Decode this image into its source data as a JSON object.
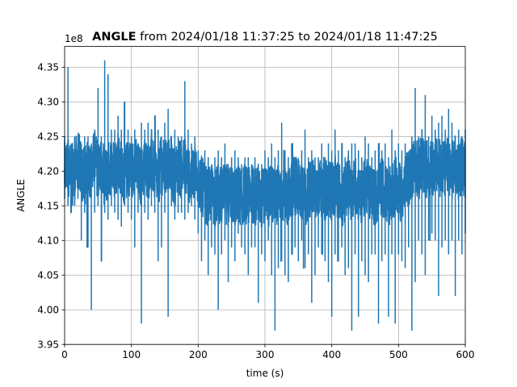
{
  "chart_data": {
    "type": "line",
    "title_bold": "ANGLE",
    "title_rest": " from 2024/01/18 11:37:25 to 2024/01/18 11:47:25",
    "xlabel": "time (s)",
    "ylabel": "ANGLE",
    "offset_label": "1e8",
    "xlim": [
      0,
      600
    ],
    "ylim": [
      3.95,
      4.38
    ],
    "x_ticks": [
      0,
      100,
      200,
      300,
      400,
      500,
      600
    ],
    "y_ticks": [
      3.95,
      4.0,
      4.05,
      4.1,
      4.15,
      4.2,
      4.25,
      4.3,
      4.35
    ],
    "x_tick_labels": [
      "0",
      "100",
      "200",
      "300",
      "400",
      "500",
      "600"
    ],
    "y_tick_labels": [
      "3.95",
      "4.00",
      "4.05",
      "4.10",
      "4.15",
      "4.20",
      "4.25",
      "4.30",
      "4.35"
    ],
    "grid": true,
    "line_color": "#1f77b4",
    "series": [
      {
        "values_note": "",
        "x": [
          0,
          5,
          10,
          15,
          20,
          25,
          30,
          35,
          40,
          45,
          50,
          55,
          60,
          65,
          70,
          75,
          80,
          85,
          90,
          95,
          100,
          105,
          110,
          115,
          120,
          125,
          130,
          135,
          140,
          145,
          150,
          155,
          160,
          165,
          170,
          175,
          180,
          185,
          190,
          195,
          200,
          205,
          210,
          215,
          220,
          225,
          230,
          235,
          240,
          245,
          250,
          255,
          260,
          265,
          270,
          275,
          280,
          285,
          290,
          295,
          300,
          305,
          310,
          315,
          320,
          325,
          330,
          335,
          340,
          345,
          350,
          355,
          360,
          365,
          370,
          375,
          380,
          385,
          390,
          395,
          400,
          405,
          410,
          415,
          420,
          425,
          430,
          435,
          440,
          445,
          450,
          455,
          460,
          465,
          470,
          475,
          480,
          485,
          490,
          495,
          500,
          505,
          510,
          515,
          520,
          525,
          530,
          535,
          540,
          545,
          550,
          555,
          560,
          565,
          570,
          575,
          580,
          585,
          590,
          595,
          600
        ],
        "values": [
          4.2,
          4.21,
          4.19,
          4.2,
          4.22,
          4.2,
          4.19,
          4.21,
          4.2,
          4.22,
          4.2,
          4.21,
          4.19,
          4.2,
          4.21,
          4.2,
          4.22,
          4.2,
          4.19,
          4.21,
          4.2,
          4.21,
          4.2,
          4.19,
          4.21,
          4.2,
          4.21,
          4.2,
          4.19,
          4.21,
          4.2,
          4.21,
          4.2,
          4.19,
          4.21,
          4.2,
          4.21,
          4.2,
          4.19,
          4.2,
          4.19,
          4.18,
          4.17,
          4.16,
          4.17,
          4.16,
          4.17,
          4.16,
          4.17,
          4.16,
          4.17,
          4.16,
          4.17,
          4.16,
          4.17,
          4.16,
          4.17,
          4.16,
          4.17,
          4.16,
          4.17,
          4.16,
          4.17,
          4.16,
          4.17,
          4.16,
          4.17,
          4.16,
          4.17,
          4.17,
          4.18,
          4.17,
          4.16,
          4.17,
          4.18,
          4.17,
          4.18,
          4.17,
          4.17,
          4.18,
          4.17,
          4.18,
          4.17,
          4.16,
          4.17,
          4.18,
          4.17,
          4.18,
          4.17,
          4.16,
          4.18,
          4.17,
          4.17,
          4.16,
          4.17,
          4.18,
          4.17,
          4.16,
          4.17,
          4.18,
          4.17,
          4.17,
          4.18,
          4.19,
          4.2,
          4.21,
          4.2,
          4.21,
          4.2,
          4.21,
          4.2,
          4.21,
          4.2,
          4.21,
          4.2,
          4.21,
          4.2,
          4.21,
          4.2,
          4.21,
          4.2
        ],
        "upper_envelope": [
          4.25,
          4.35,
          4.24,
          4.25,
          4.23,
          4.24,
          4.25,
          4.25,
          4.24,
          4.26,
          4.32,
          4.25,
          4.36,
          4.34,
          4.26,
          4.26,
          4.28,
          4.26,
          4.3,
          4.26,
          4.25,
          4.26,
          4.24,
          4.27,
          4.26,
          4.27,
          4.26,
          4.28,
          4.26,
          4.25,
          4.27,
          4.29,
          4.25,
          4.26,
          4.25,
          4.25,
          4.33,
          4.26,
          4.24,
          4.25,
          4.23,
          4.22,
          4.23,
          4.22,
          4.21,
          4.22,
          4.23,
          4.22,
          4.24,
          4.21,
          4.22,
          4.23,
          4.22,
          4.21,
          4.22,
          4.22,
          4.21,
          4.22,
          4.21,
          4.21,
          4.23,
          4.22,
          4.24,
          4.22,
          4.23,
          4.27,
          4.23,
          4.22,
          4.24,
          4.22,
          4.21,
          4.23,
          4.26,
          4.22,
          4.23,
          4.22,
          4.22,
          4.24,
          4.22,
          4.24,
          4.23,
          4.26,
          4.23,
          4.24,
          4.22,
          4.23,
          4.24,
          4.24,
          4.23,
          4.22,
          4.25,
          4.24,
          4.22,
          4.23,
          4.24,
          4.23,
          4.24,
          4.22,
          4.26,
          4.23,
          4.24,
          4.23,
          4.24,
          4.22,
          4.25,
          4.32,
          4.25,
          4.26,
          4.31,
          4.25,
          4.28,
          4.26,
          4.27,
          4.28,
          4.26,
          4.29,
          4.27,
          4.25,
          4.26,
          4.25,
          4.26
        ],
        "lower_envelope": [
          4.16,
          4.15,
          4.14,
          4.15,
          4.16,
          4.1,
          4.14,
          4.09,
          4.0,
          4.14,
          4.15,
          4.07,
          4.14,
          4.13,
          4.15,
          4.14,
          4.13,
          4.12,
          4.15,
          4.14,
          4.13,
          4.09,
          4.14,
          3.98,
          4.14,
          4.13,
          4.15,
          4.14,
          4.07,
          4.09,
          4.14,
          3.99,
          4.15,
          4.13,
          4.14,
          4.14,
          4.13,
          4.14,
          4.15,
          4.13,
          4.11,
          4.07,
          4.1,
          4.05,
          4.09,
          4.08,
          4.0,
          4.08,
          4.1,
          4.04,
          4.09,
          4.07,
          4.11,
          4.09,
          4.08,
          4.05,
          4.09,
          4.09,
          4.01,
          4.08,
          4.07,
          4.1,
          4.05,
          3.97,
          4.06,
          4.07,
          4.05,
          4.04,
          4.08,
          4.09,
          4.07,
          4.1,
          4.06,
          4.08,
          4.01,
          4.05,
          4.09,
          4.08,
          4.07,
          4.04,
          3.99,
          4.08,
          4.07,
          4.09,
          4.05,
          4.06,
          3.97,
          4.08,
          3.99,
          4.07,
          4.05,
          4.04,
          4.08,
          4.08,
          3.98,
          4.07,
          4.08,
          3.99,
          4.08,
          3.98,
          4.08,
          4.07,
          4.06,
          4.09,
          3.97,
          4.04,
          4.1,
          4.08,
          4.05,
          4.1,
          4.11,
          4.1,
          4.02,
          4.09,
          4.1,
          4.08,
          4.1,
          4.02,
          4.1,
          4.08,
          4.11
        ]
      }
    ]
  }
}
